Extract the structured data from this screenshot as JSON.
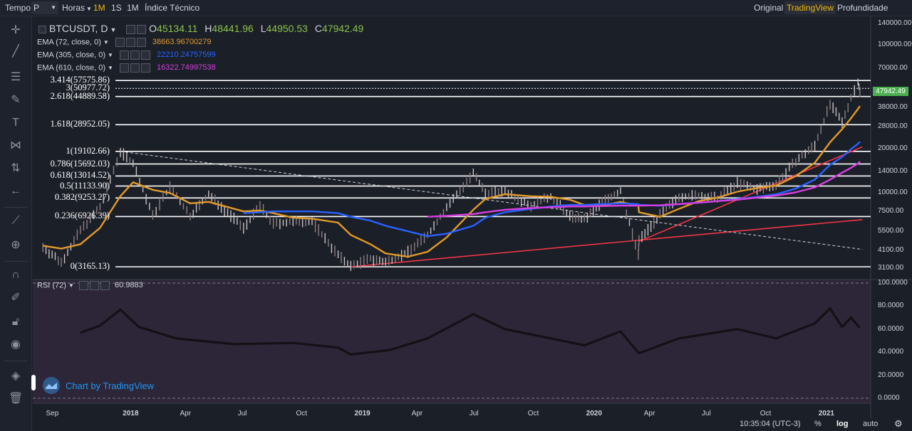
{
  "toolbar": {
    "time_label": "Tempo",
    "chart_type_label": "P",
    "hours_label": "Horas",
    "interval_1m": "1M",
    "interval_1s": "1S",
    "interval_1M": "1M",
    "indicators_label": "Índice Técnico",
    "view_original": "Original",
    "view_tradingview": "TradingView",
    "view_depth": "Profundidade"
  },
  "legend": {
    "symbol": "BTCUSDT, D",
    "o_key": "O",
    "o_val": "45134.11",
    "h_key": "H",
    "h_val": "48441.96",
    "l_key": "L",
    "l_val": "44950.53",
    "c_key": "C",
    "c_val": "47942.49",
    "ema1_label": "EMA (72, close, 0)",
    "ema1_val": "38663.96700279",
    "ema2_label": "EMA (305, close, 0)",
    "ema2_val": "22210.24757599",
    "ema3_label": "EMA (610, close, 0)",
    "ema3_val": "16322.74997538",
    "rsi_label": "RSI (72)",
    "rsi_val": "60.9883"
  },
  "price_tag": "47942.49",
  "watermark": "Chart by TradingView",
  "bottom": {
    "time": "10:35:04 (UTC-3)",
    "percent": "%",
    "log": "log",
    "auto": "auto"
  },
  "colors": {
    "ema72": "#e29a2a",
    "ema305": "#2962ff",
    "ema610": "#d63fe0",
    "trend_support": "#f23645",
    "fib_line": "#ffffff",
    "candle_up": "#c8c2c4",
    "candle_down": "#8c7f82",
    "rsi_line": "#2a1a26",
    "rsi_bg": "#2c2638"
  },
  "chart_data": [
    {
      "type": "line",
      "title": "BTCUSDT, D",
      "scale": "log",
      "ylim": [
        3100,
        140000
      ],
      "y_ticks": [
        "140000.00",
        "100000.00",
        "70000.00",
        "38000.00",
        "28000.00",
        "20000.00",
        "14000.00",
        "10000.00",
        "7500.00",
        "5500.00",
        "4100.00",
        "3100.00"
      ],
      "x_ticks": [
        "Sep",
        "2018",
        "Apr",
        "Jul",
        "Oct",
        "2019",
        "Apr",
        "Jul",
        "Oct",
        "2020",
        "Apr",
        "Jul",
        "Oct",
        "2021"
      ],
      "x_ticks_bold": [
        "2018",
        "2019",
        "2020",
        "2021"
      ],
      "fib_levels": [
        {
          "label": "3.414(57575.86)",
          "value": 57575.86
        },
        {
          "label": "3(50977.72)",
          "value": 50977.72
        },
        {
          "label": "2.618(44889.58)",
          "value": 44889.58
        },
        {
          "label": "1.618(28952.05)",
          "value": 28952.05
        },
        {
          "label": "1(19102.66)",
          "value": 19102.66
        },
        {
          "label": "0.786(15692.03)",
          "value": 15692.03
        },
        {
          "label": "0.618(13014.52)",
          "value": 13014.52
        },
        {
          "label": "0.5(11133.90)",
          "value": 11133.9
        },
        {
          "label": "0.382(9253.27)",
          "value": 9253.27
        },
        {
          "label": "0.236(6926.39)",
          "value": 6926.39
        },
        {
          "label": "0(3165.13)",
          "value": 3165.13
        }
      ],
      "x": [
        "2017-08-17",
        "2017-09-15",
        "2017-10-15",
        "2017-11-15",
        "2017-12-17",
        "2018-01-06",
        "2018-02-06",
        "2018-03-05",
        "2018-04-06",
        "2018-05-05",
        "2018-06-29",
        "2018-07-25",
        "2018-08-15",
        "2018-09-15",
        "2018-10-15",
        "2018-11-25",
        "2018-12-15",
        "2019-01-15",
        "2019-02-08",
        "2019-03-15",
        "2019-04-15",
        "2019-05-15",
        "2019-06-26",
        "2019-07-15",
        "2019-08-15",
        "2019-09-25",
        "2019-10-26",
        "2019-11-25",
        "2019-12-18",
        "2020-01-15",
        "2020-02-13",
        "2020-03-12",
        "2020-03-13",
        "2020-04-15",
        "2020-05-15",
        "2020-06-15",
        "2020-07-15",
        "2020-08-15",
        "2020-09-15",
        "2020-10-15",
        "2020-11-15",
        "2020-12-15",
        "2021-01-08",
        "2021-01-27",
        "2021-02-10",
        "2021-02-21",
        "2021-02-24"
      ],
      "series": [
        {
          "name": "BTCUSDT",
          "values": [
            4300,
            3400,
            5600,
            8000,
            19100,
            16000,
            7000,
            11000,
            7000,
            9800,
            5800,
            8200,
            6200,
            6400,
            6400,
            3800,
            3200,
            3600,
            3400,
            4000,
            5200,
            8000,
            13500,
            10000,
            10300,
            8200,
            9500,
            7000,
            6600,
            8700,
            10300,
            3800,
            4800,
            7100,
            9500,
            9600,
            9200,
            11700,
            10600,
            11500,
            16500,
            21000,
            40000,
            30000,
            44000,
            57000,
            47942
          ]
        }
      ],
      "ema_series": [
        {
          "name": "EMA (72, close, 0)",
          "values": [
            4400,
            4200,
            4500,
            5800,
            9500,
            11800,
            10500,
            10000,
            8500,
            8700,
            7500,
            7600,
            7300,
            6800,
            6700,
            6300,
            5200,
            4500,
            3900,
            3700,
            4000,
            5000,
            7700,
            9100,
            9800,
            9500,
            9400,
            9000,
            8300,
            8200,
            8700,
            8200,
            7400,
            6900,
            7800,
            8800,
            9300,
            10200,
            10800,
            11200,
            13000,
            16000,
            22000,
            27000,
            32000,
            37000,
            38663
          ]
        },
        {
          "name": "EMA (305, close, 0)",
          "values": [
            null,
            null,
            null,
            null,
            null,
            null,
            null,
            null,
            null,
            null,
            7300,
            7400,
            7500,
            7500,
            7500,
            7300,
            6900,
            6500,
            6000,
            5500,
            5100,
            5300,
            6000,
            6800,
            7400,
            7800,
            8100,
            8300,
            8300,
            8400,
            8500,
            8400,
            8300,
            8200,
            8400,
            8600,
            8800,
            9100,
            9400,
            9800,
            10700,
            12300,
            15500,
            17500,
            19800,
            21500,
            22210
          ]
        },
        {
          "name": "EMA (610, close, 0)",
          "values": [
            null,
            null,
            null,
            null,
            null,
            null,
            null,
            null,
            null,
            null,
            null,
            null,
            null,
            null,
            null,
            null,
            null,
            null,
            null,
            null,
            6900,
            7000,
            7200,
            7400,
            7700,
            7900,
            8000,
            8100,
            8100,
            8150,
            8200,
            8200,
            8200,
            8250,
            8400,
            8600,
            8800,
            9000,
            9300,
            9600,
            10100,
            10900,
            12300,
            13700,
            14800,
            15800,
            16322
          ]
        }
      ],
      "trend_lines": [
        {
          "name": "support-2018",
          "from": [
            "2018-12-15",
            3165
          ],
          "to": [
            "2021-02-28",
            6600
          ]
        },
        {
          "name": "support-2020",
          "from": [
            "2020-03-13",
            4700
          ],
          "to": [
            "2021-02-28",
            20500
          ]
        },
        {
          "name": "resistance-2017",
          "from": [
            "2017-12-17",
            19100
          ],
          "to": [
            "2021-02-28",
            4150
          ]
        }
      ]
    },
    {
      "type": "line",
      "title": "RSI (72)",
      "ylim": [
        0,
        100
      ],
      "y_ticks": [
        "100.0000",
        "80.0000",
        "60.0000",
        "40.0000",
        "20.0000",
        "0.0000"
      ],
      "x": [
        "2017-10-15",
        "2017-11-15",
        "2017-12-17",
        "2018-01-15",
        "2018-03-15",
        "2018-06-15",
        "2018-09-15",
        "2018-11-25",
        "2018-12-15",
        "2019-02-15",
        "2019-04-15",
        "2019-06-26",
        "2019-08-15",
        "2019-10-26",
        "2019-12-18",
        "2020-02-13",
        "2020-03-13",
        "2020-05-15",
        "2020-08-15",
        "2020-10-15",
        "2020-12-15",
        "2021-01-08",
        "2021-01-27",
        "2021-02-10",
        "2021-02-24"
      ],
      "series": [
        {
          "name": "RSI (72)",
          "values": [
            57,
            63,
            77,
            62,
            52,
            47,
            48,
            44,
            38,
            42,
            52,
            73,
            60,
            52,
            46,
            58,
            39,
            52,
            60,
            52,
            65,
            78,
            62,
            70,
            60.99
          ]
        }
      ]
    }
  ]
}
